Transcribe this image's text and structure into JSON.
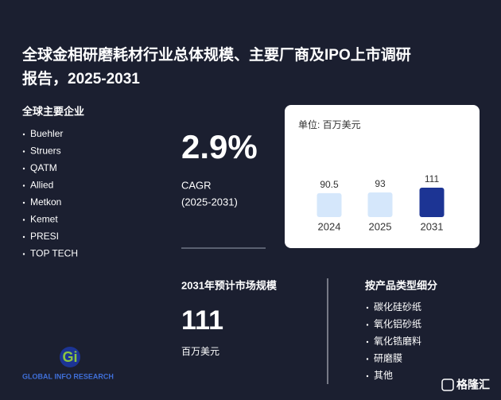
{
  "header": {
    "title_line1": "全球金相研磨耗材行业总体规模、主要厂商及IPO上市调研",
    "title_line2": "报告，2025-2031"
  },
  "companies": {
    "heading": "全球主要企业",
    "items": [
      "Buehler",
      "Struers",
      "QATM",
      "Allied",
      "Metkon",
      "Kemet",
      "PRESI",
      "TOP TECH"
    ]
  },
  "cagr": {
    "value": "2.9%",
    "label": "CAGR",
    "period": "(2025-2031)"
  },
  "chart_data": {
    "type": "bar",
    "unit": "单位: 百万美元",
    "categories": [
      "2024",
      "2025",
      "2031"
    ],
    "values": [
      90.5,
      93,
      111
    ],
    "colors": [
      "#d5e7fb",
      "#d5e7fb",
      "#1c3494"
    ]
  },
  "market": {
    "heading": "2031年预计市场规模",
    "value": "111",
    "unit": "百万美元"
  },
  "segments": {
    "heading": "按产品类型细分",
    "items": [
      "碳化硅砂纸",
      "氧化铝砂纸",
      "氧化锆磨料",
      "研磨膜",
      "其他"
    ]
  },
  "logo": {
    "text": "GLOBAL INFO RESEARCH"
  },
  "watermark": {
    "text": "格隆汇"
  }
}
